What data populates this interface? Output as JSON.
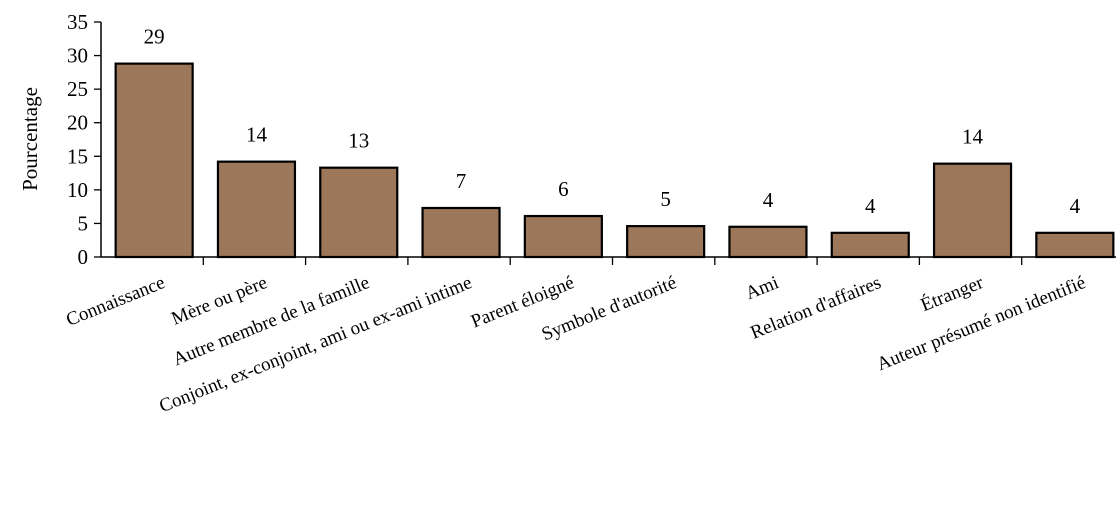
{
  "chart_data": {
    "type": "bar",
    "categories": [
      "Connaissance",
      "Mère ou père",
      "Autre membre de la famille",
      "Conjoint, ex-conjoint, ami ou ex-ami intime",
      "Parent éloigné",
      "Symbole d'autorité",
      "Ami",
      "Relation d'affaires",
      "Étranger",
      "Auteur présumé non identifié"
    ],
    "values": [
      29,
      14,
      13,
      7,
      6,
      5,
      4,
      4,
      14,
      4
    ],
    "plotted_values": [
      28.8,
      14.2,
      13.3,
      7.3,
      6.1,
      4.6,
      4.5,
      3.6,
      13.9,
      3.6
    ],
    "data_labels": [
      "29",
      "14",
      "13",
      "7",
      "6",
      "5",
      "4",
      "4",
      "14",
      "4"
    ],
    "title": "",
    "xlabel": "",
    "ylabel": "Pourcentage",
    "ylim": [
      0,
      35
    ],
    "yticks": [
      0,
      5,
      10,
      15,
      20,
      25,
      30,
      35
    ],
    "grid": false,
    "legend": "none",
    "colors": {
      "bar_fill": "#9C775A",
      "bar_stroke": "#000000",
      "axis": "#000000",
      "text": "#000000"
    }
  }
}
